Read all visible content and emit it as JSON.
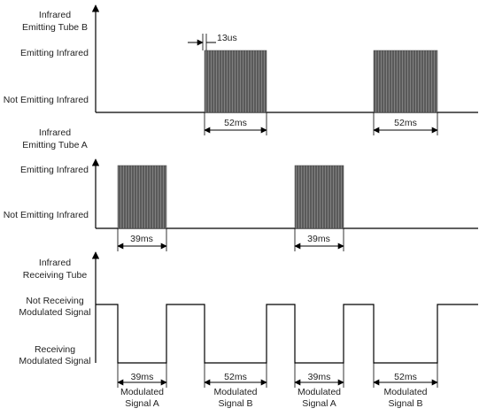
{
  "panels": [
    {
      "title": [
        "Infrared",
        "Emitting Tube B"
      ],
      "levels": [
        [
          "Emitting Infrared"
        ],
        [
          "Not Emitting Infrared"
        ]
      ],
      "durations": [
        "52ms",
        "52ms"
      ],
      "annotation": "13us"
    },
    {
      "title": [
        "Infrared",
        "Emitting Tube A"
      ],
      "levels": [
        [
          "Emitting Infrared"
        ],
        [
          "Not Emitting Infrared"
        ]
      ],
      "durations": [
        "39ms",
        "39ms"
      ]
    },
    {
      "title": [
        "Infrared",
        "Receiving Tube"
      ],
      "levels": [
        [
          "Not Receiving",
          "Modulated Signal"
        ],
        [
          "Receiving",
          "Modulated Signal"
        ]
      ],
      "durations": [
        "39ms",
        "52ms",
        "39ms",
        "52ms"
      ],
      "signals": [
        [
          "Modulated",
          "Signal A"
        ],
        [
          "Modulated",
          "Signal B"
        ],
        [
          "Modulated",
          "Signal A"
        ],
        [
          "Modulated",
          "Signal B"
        ]
      ]
    }
  ]
}
